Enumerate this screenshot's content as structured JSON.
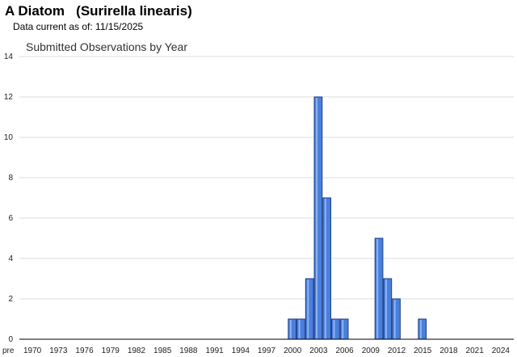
{
  "header": {
    "title": "A Diatom   (Surirella linearis)",
    "subtitle": "Data current as of: 11/15/2025"
  },
  "chart_data": {
    "type": "bar",
    "title": "Submitted Observations by Year",
    "xlabel": "",
    "ylabel": "",
    "ylim": [
      0,
      14
    ],
    "yticks": [
      0,
      2,
      4,
      6,
      8,
      10,
      12,
      14
    ],
    "grid": true,
    "legend": "none",
    "x_tick_labels": [
      "pre",
      "1970",
      "1973",
      "1976",
      "1979",
      "1982",
      "1985",
      "1988",
      "1991",
      "1994",
      "1997",
      "2000",
      "2003",
      "2006",
      "2009",
      "2012",
      "2015",
      "2018",
      "2021",
      "2024"
    ],
    "bar_color": "#4a7fdc",
    "bar_edge_color": "#1e3f8a",
    "categories": [
      "pre",
      "1970",
      "1971",
      "1972",
      "1973",
      "1974",
      "1975",
      "1976",
      "1977",
      "1978",
      "1979",
      "1980",
      "1981",
      "1982",
      "1983",
      "1984",
      "1985",
      "1986",
      "1987",
      "1988",
      "1989",
      "1990",
      "1991",
      "1992",
      "1993",
      "1994",
      "1995",
      "1996",
      "1997",
      "1998",
      "1999",
      "2000",
      "2001",
      "2002",
      "2003",
      "2004",
      "2005",
      "2006",
      "2007",
      "2008",
      "2009",
      "2010",
      "2011",
      "2012",
      "2013",
      "2014",
      "2015",
      "2016",
      "2017",
      "2018",
      "2019",
      "2020",
      "2021",
      "2022",
      "2023",
      "2024",
      "2025"
    ],
    "values": [
      0,
      0,
      0,
      0,
      0,
      0,
      0,
      0,
      0,
      0,
      0,
      0,
      0,
      0,
      0,
      0,
      0,
      0,
      0,
      0,
      0,
      0,
      0,
      0,
      0,
      0,
      0,
      0,
      0,
      0,
      0,
      1,
      1,
      3,
      12,
      7,
      1,
      1,
      0,
      0,
      0,
      5,
      3,
      2,
      0,
      0,
      1,
      0,
      0,
      0,
      0,
      0,
      0,
      0,
      0,
      0,
      0
    ]
  }
}
